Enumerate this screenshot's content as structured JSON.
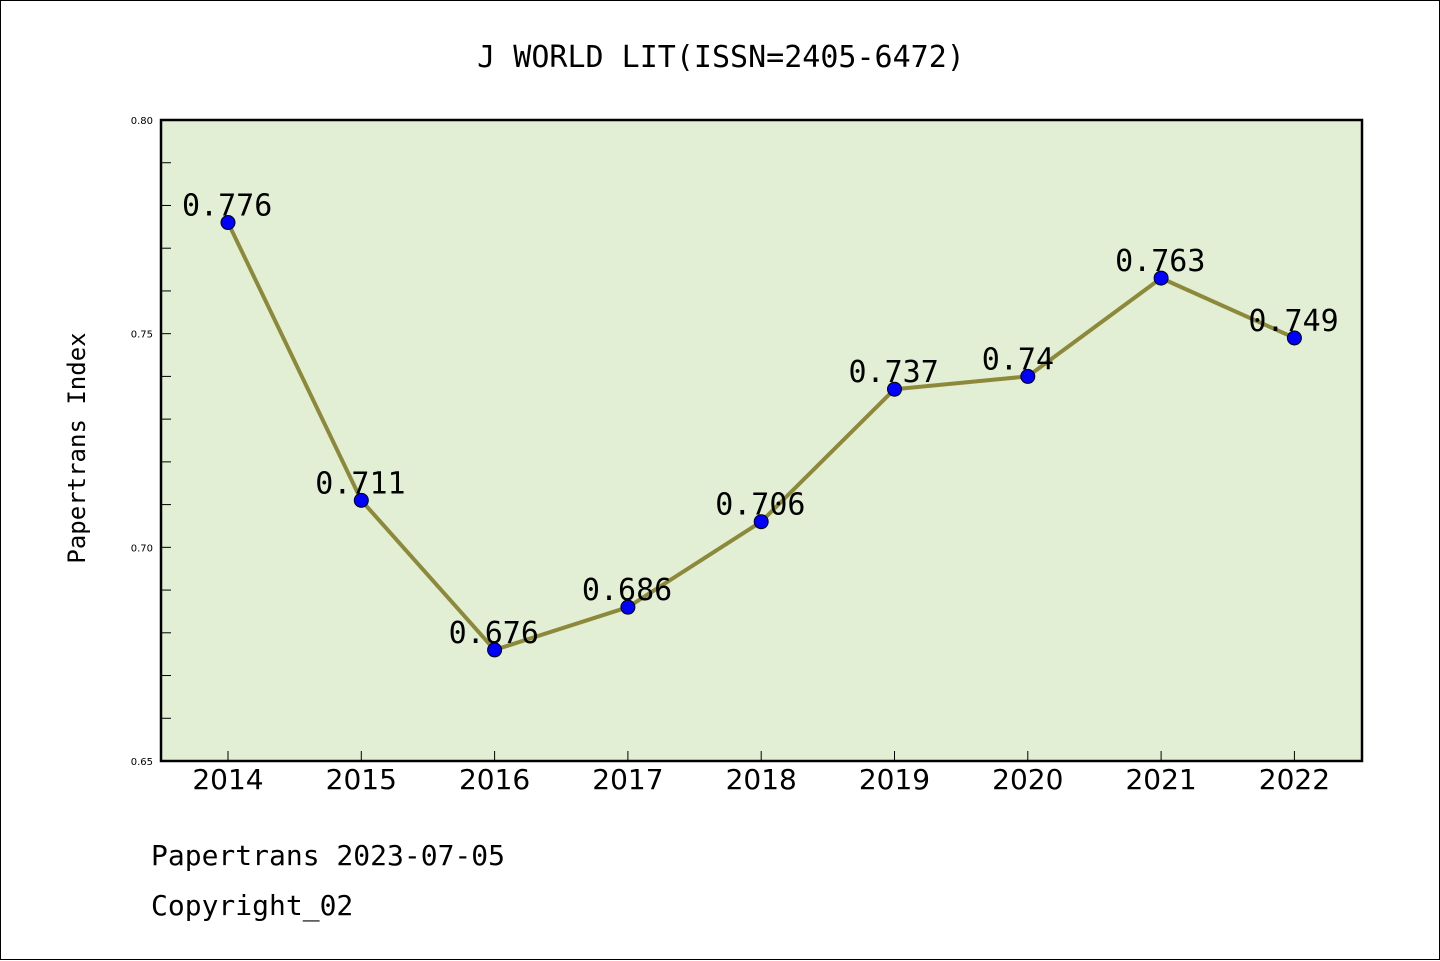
{
  "chart_data": {
    "type": "line",
    "title": "J WORLD LIT(ISSN=2405-6472)",
    "ylabel": "Papertrans Index",
    "xlabel": "",
    "categories": [
      "2014",
      "2015",
      "2016",
      "2017",
      "2018",
      "2019",
      "2020",
      "2021",
      "2022"
    ],
    "values": [
      0.776,
      0.711,
      0.676,
      0.686,
      0.706,
      0.737,
      0.74,
      0.763,
      0.749
    ],
    "data_labels": [
      "0.776",
      "0.711",
      "0.676",
      "0.686",
      "0.706",
      "0.737",
      "0.74",
      "0.763",
      "0.749"
    ],
    "ylim": [
      0.65,
      0.8
    ],
    "yticks": [
      "0.65",
      "0.70",
      "0.75",
      "0.80"
    ],
    "grid": false,
    "colors": {
      "line": "#8c8a3a",
      "marker": "#0000ff",
      "plot_background": "#e2efd5"
    }
  },
  "footer": {
    "line1": "Papertrans 2023-07-05",
    "line2": "Copyright_02"
  }
}
